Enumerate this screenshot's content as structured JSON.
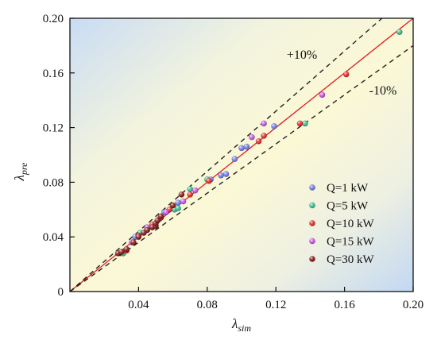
{
  "chart_data": {
    "type": "scatter",
    "xlabel": "λ",
    "xlabel_sub": "sim",
    "ylabel": "λ",
    "ylabel_sub": "pre",
    "xlim": [
      0,
      0.2
    ],
    "ylim": [
      0,
      0.2
    ],
    "xticks": [
      "0.04",
      "0.08",
      "0.12",
      "0.16",
      "0.20"
    ],
    "xtick_values": [
      0.04,
      0.08,
      0.12,
      0.16,
      0.2
    ],
    "yticks": [
      "0",
      "0.04",
      "0.08",
      "0.12",
      "0.16",
      "0.20"
    ],
    "ytick_values": [
      0,
      0.04,
      0.08,
      0.12,
      0.16,
      0.2
    ],
    "legend_position": "lower-right",
    "annotations": [
      {
        "text": "+10%",
        "x": 0.125,
        "y": 0.17
      },
      {
        "text": "-10%",
        "x": 0.165,
        "y": 0.145
      }
    ],
    "reference_lines": [
      {
        "name": "y=x",
        "slope": 1.0,
        "color": "#e02020",
        "style": "solid"
      },
      {
        "name": "+10%",
        "slope": 1.1,
        "color": "#222222",
        "style": "dashed"
      },
      {
        "name": "-10%",
        "slope": 0.9,
        "color": "#222222",
        "style": "dashed"
      }
    ],
    "series": [
      {
        "name": "Q=1 kW",
        "color": "#6f7ef0",
        "points": [
          [
            0.038,
            0.04
          ],
          [
            0.045,
            0.046
          ],
          [
            0.055,
            0.058
          ],
          [
            0.063,
            0.065
          ],
          [
            0.082,
            0.082
          ],
          [
            0.088,
            0.085
          ],
          [
            0.091,
            0.086
          ],
          [
            0.096,
            0.097
          ],
          [
            0.1,
            0.105
          ],
          [
            0.103,
            0.106
          ],
          [
            0.119,
            0.121
          ]
        ]
      },
      {
        "name": "Q=5 kW",
        "color": "#2fc491",
        "points": [
          [
            0.031,
            0.028
          ],
          [
            0.041,
            0.043
          ],
          [
            0.052,
            0.053
          ],
          [
            0.061,
            0.06
          ],
          [
            0.063,
            0.061
          ],
          [
            0.07,
            0.075
          ],
          [
            0.08,
            0.082
          ],
          [
            0.137,
            0.123
          ],
          [
            0.192,
            0.19
          ]
        ]
      },
      {
        "name": "Q=10 kW",
        "color": "#ee2222",
        "points": [
          [
            0.033,
            0.03
          ],
          [
            0.04,
            0.041
          ],
          [
            0.048,
            0.049
          ],
          [
            0.053,
            0.054
          ],
          [
            0.058,
            0.06
          ],
          [
            0.07,
            0.071
          ],
          [
            0.081,
            0.081
          ],
          [
            0.11,
            0.11
          ],
          [
            0.113,
            0.114
          ],
          [
            0.134,
            0.123
          ],
          [
            0.161,
            0.159
          ]
        ]
      },
      {
        "name": "Q=15 kW",
        "color": "#d250ee",
        "points": [
          [
            0.036,
            0.036
          ],
          [
            0.045,
            0.047
          ],
          [
            0.056,
            0.058
          ],
          [
            0.066,
            0.066
          ],
          [
            0.073,
            0.074
          ],
          [
            0.106,
            0.113
          ],
          [
            0.113,
            0.123
          ],
          [
            0.147,
            0.144
          ]
        ]
      },
      {
        "name": "Q=30 kW",
        "color": "#8a1010",
        "points": [
          [
            0.028,
            0.028
          ],
          [
            0.03,
            0.029
          ],
          [
            0.033,
            0.031
          ],
          [
            0.037,
            0.036
          ],
          [
            0.04,
            0.04
          ],
          [
            0.043,
            0.043
          ],
          [
            0.045,
            0.045
          ],
          [
            0.048,
            0.047
          ],
          [
            0.05,
            0.048
          ],
          [
            0.05,
            0.05
          ],
          [
            0.051,
            0.052
          ],
          [
            0.053,
            0.055
          ],
          [
            0.06,
            0.063
          ],
          [
            0.065,
            0.071
          ]
        ]
      }
    ]
  }
}
